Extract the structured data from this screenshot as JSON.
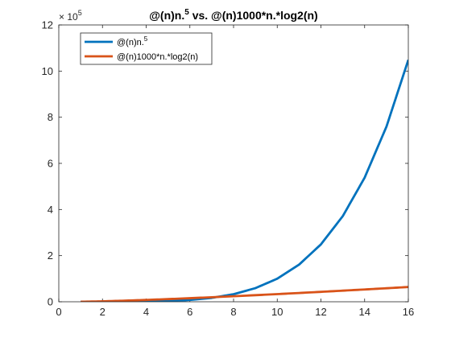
{
  "chart_data": {
    "type": "line",
    "title_base": "@(n)n.",
    "title_sup": "5",
    "title_rest": " vs. @(n)1000*n.*log2(n)",
    "title": "@(n)n.^5 vs. @(n)1000*n.*log2(n)",
    "xlabel": "",
    "ylabel": "",
    "xlim": [
      0,
      16
    ],
    "ylim": [
      0,
      1200000
    ],
    "y_exponent_base": "× 10",
    "y_exponent_power": "5",
    "x_ticks": [
      0,
      2,
      4,
      6,
      8,
      10,
      12,
      14,
      16
    ],
    "x_tick_labels": [
      "0",
      "2",
      "4",
      "6",
      "8",
      "10",
      "12",
      "14",
      "16"
    ],
    "y_ticks": [
      0,
      200000,
      400000,
      600000,
      800000,
      1000000,
      1200000
    ],
    "y_tick_labels": [
      "0",
      "2",
      "4",
      "6",
      "8",
      "10",
      "12"
    ],
    "grid": false,
    "legend_position": "top-left",
    "series": [
      {
        "name": "@(n)n.^5",
        "legend_base": "@(n)n.",
        "legend_sup": "5",
        "color": "#0072BD",
        "x": [
          1,
          2,
          3,
          4,
          5,
          6,
          7,
          8,
          9,
          10,
          11,
          12,
          13,
          14,
          15,
          16
        ],
        "y": [
          1,
          32,
          243,
          1024,
          3125,
          7776,
          16807,
          32768,
          59049,
          100000,
          161051,
          248832,
          371293,
          537824,
          759375,
          1048576
        ]
      },
      {
        "name": "@(n)1000*n.*log2(n)",
        "legend_base": "@(n)1000*n.*log2(n)",
        "legend_sup": "",
        "color": "#D95319",
        "x": [
          1,
          2,
          3,
          4,
          5,
          6,
          7,
          8,
          9,
          10,
          11,
          12,
          13,
          14,
          15,
          16
        ],
        "y": [
          0,
          2000,
          4755,
          8000,
          11610,
          15510,
          19651,
          24000,
          28529,
          33219,
          38054,
          43020,
          48106,
          53303,
          58603,
          64000
        ]
      }
    ]
  }
}
